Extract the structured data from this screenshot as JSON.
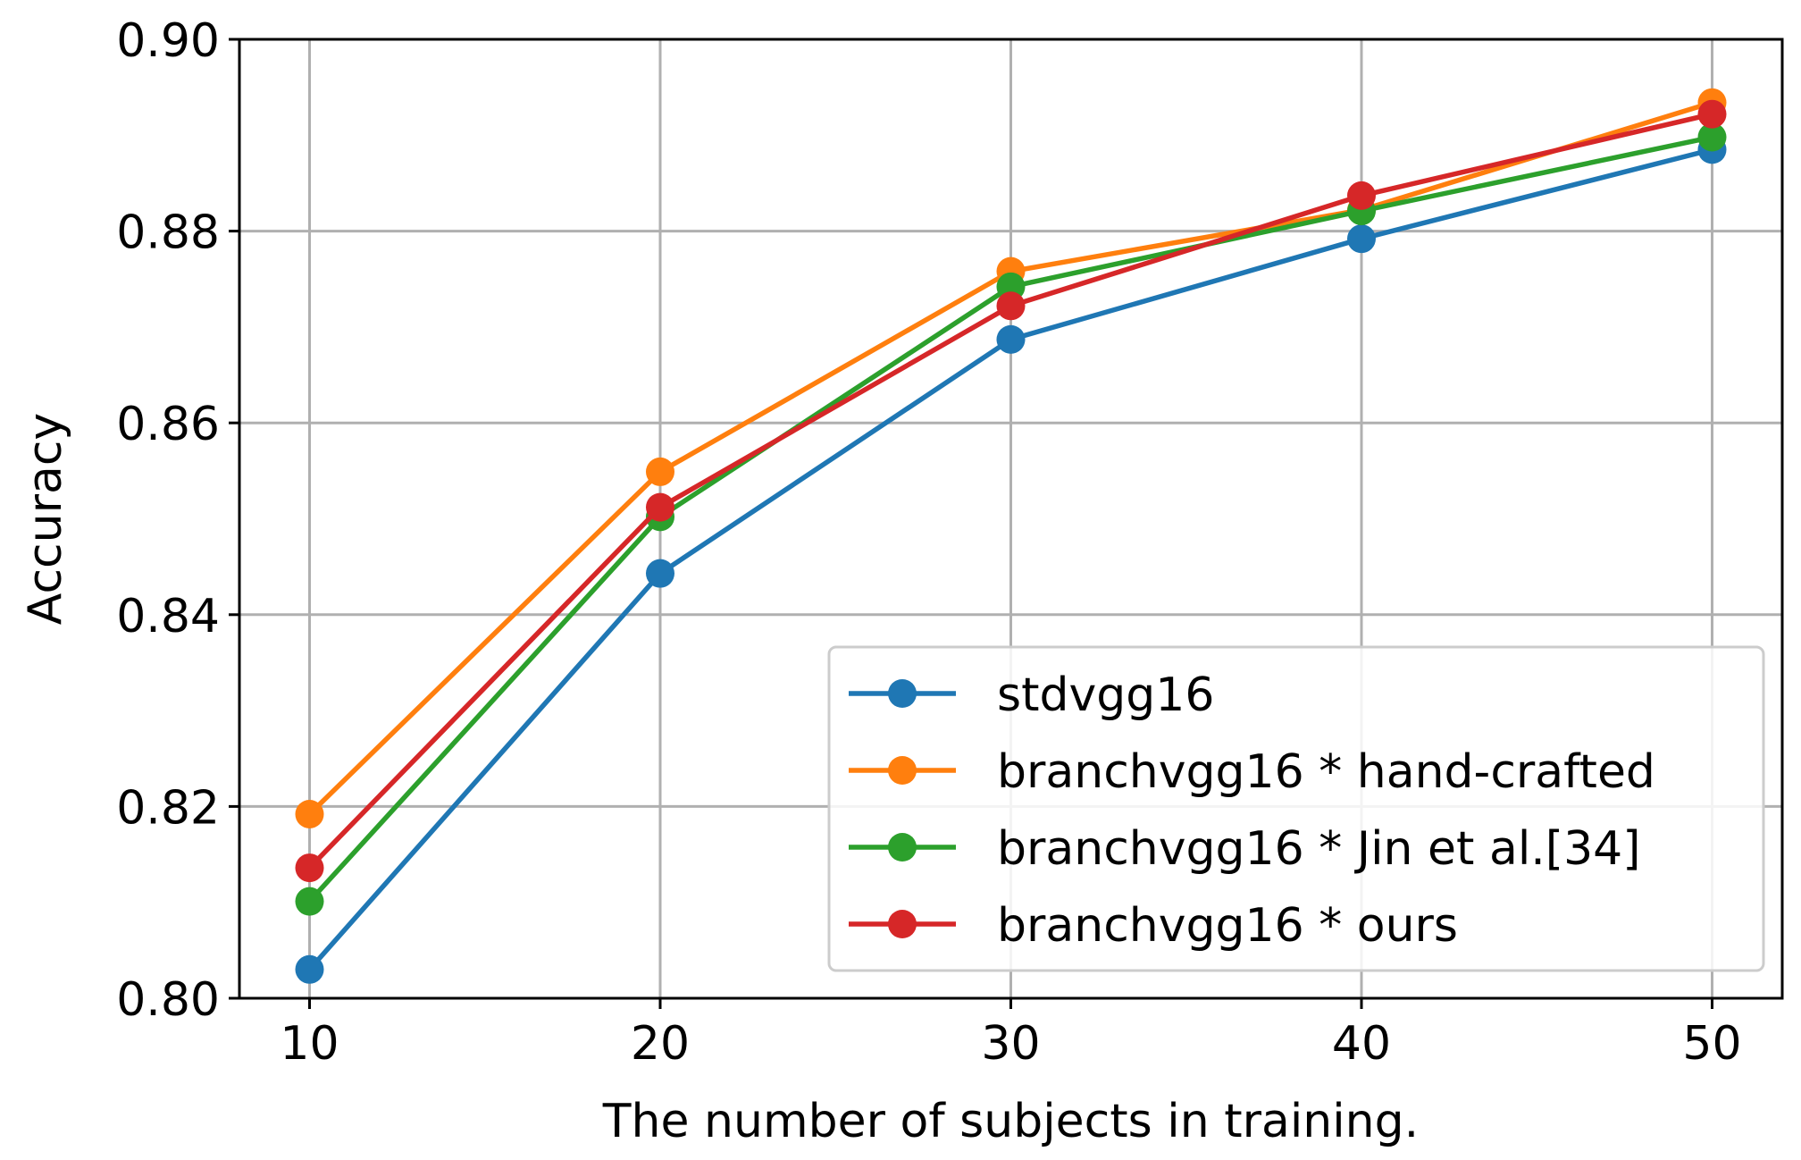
{
  "chart_data": {
    "type": "line",
    "title": "",
    "xlabel": "The number of subjects in training.",
    "ylabel": "Accuracy",
    "x": [
      10,
      20,
      30,
      40,
      50
    ],
    "xticks": [
      "10",
      "20",
      "30",
      "40",
      "50"
    ],
    "yticks": [
      "0.80",
      "0.82",
      "0.84",
      "0.86",
      "0.88",
      "0.90"
    ],
    "ytick_values": [
      0.8,
      0.82,
      0.84,
      0.86,
      0.88,
      0.9
    ],
    "xlim": [
      8,
      52
    ],
    "ylim": [
      0.8,
      0.9
    ],
    "grid": true,
    "legend_position": "lower-right",
    "series": [
      {
        "name": "stdvgg16",
        "color": "#1f77b4",
        "values": [
          0.803,
          0.8443,
          0.8687,
          0.8792,
          0.8885
        ]
      },
      {
        "name": "branchvgg16 * hand-crafted",
        "color": "#ff7f0e",
        "values": [
          0.8192,
          0.8549,
          0.8758,
          0.8822,
          0.8934
        ]
      },
      {
        "name": "branchvgg16 * Jin et al.[34]",
        "color": "#2ca02c",
        "values": [
          0.8101,
          0.8502,
          0.8742,
          0.8821,
          0.8898
        ]
      },
      {
        "name": "branchvgg16 * ours",
        "color": "#d62728",
        "values": [
          0.8136,
          0.8512,
          0.8722,
          0.8837,
          0.8922
        ]
      }
    ]
  }
}
